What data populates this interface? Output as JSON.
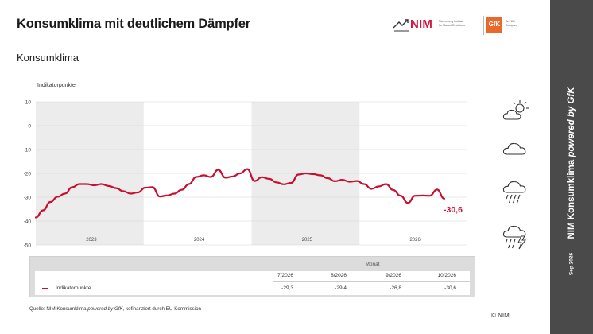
{
  "header": {
    "title": "Konsumklima mit deutlichem Dämpfer",
    "subtitle": "Konsumklima"
  },
  "logos": {
    "nim_name": "NIM",
    "nim_desc_line1": "Nuremberg Institute",
    "nim_desc_line2": "for Market Decisions",
    "gfk_name": "GfK",
    "gfk_desc_line1": "An NIQ",
    "gfk_desc_line2": "Company",
    "nim_color": "#d5163b",
    "gfk_color": "#e8692b"
  },
  "sidebar": {
    "title_main": "NIM Konsumklima ",
    "title_italic": "powered by GfK",
    "date": "Sep 2026"
  },
  "chart_data": {
    "type": "line",
    "ylabel": "Indikatorpunkte",
    "ylim": [
      -50,
      10
    ],
    "yticks": [
      10,
      0,
      -10,
      -20,
      -30,
      -40,
      -50
    ],
    "years": [
      "2023",
      "2024",
      "2025",
      "2026"
    ],
    "shaded_years": [
      "2023",
      "2025"
    ],
    "grid": true,
    "line_color": "#c8102e",
    "end_label": "-30,6",
    "series": [
      {
        "values": [
          -38.5,
          -35.5,
          -32,
          -29.8,
          -28.5,
          -25.8,
          -24.5,
          -24.5,
          -25,
          -24.5,
          -25.3,
          -26.2,
          -27.5,
          -28.5,
          -28,
          -26,
          -25.8,
          -29.7,
          -29.3,
          -28.5,
          -26.9,
          -24.5,
          -21.5,
          -20.8,
          -21.5,
          -18.5,
          -21.8,
          -21.3,
          -20,
          -18.2,
          -23.2,
          -21.6,
          -22.3,
          -23.8,
          -24.6,
          -24,
          -20.5,
          -20,
          -20.3,
          -20.8,
          -22,
          -23.3,
          -22.7,
          -23.5,
          -23.2,
          -24.5,
          -26.5,
          -25.5,
          -24.5,
          -27,
          -29.4,
          -32.4,
          -29.4,
          -29.3,
          -29.4,
          -26.8,
          -30.6
        ]
      }
    ]
  },
  "weather_icons": [
    "sun-cloud-icon",
    "cloud-icon",
    "rain-cloud-icon",
    "thunderstorm-icon"
  ],
  "table": {
    "header": "Monat",
    "columns": [
      "7/2026",
      "8/2026",
      "9/2026",
      "10/2026"
    ],
    "row_label": "Indikatorpunkte",
    "values": [
      "-29,3",
      "-29,4",
      "-26,8",
      "-30,6"
    ]
  },
  "footer": {
    "source_prefix": "Quelle: NIM Konsumklima ",
    "source_italic": "powered by GfK",
    "source_suffix": ", kofinanziert durch EU-Kommission",
    "copyright": "© NIM"
  }
}
